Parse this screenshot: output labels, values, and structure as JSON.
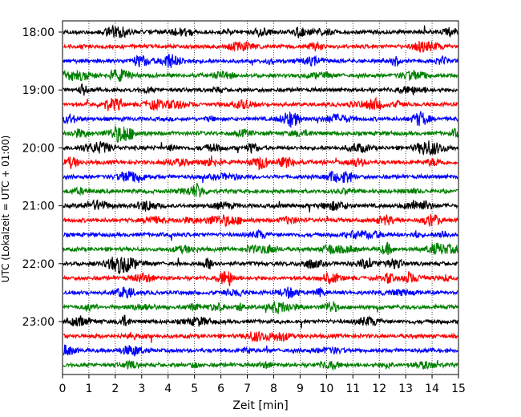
{
  "chart_data": {
    "type": "line",
    "xlabel": "Zeit  [min]",
    "ylabel": "UTC (Lokalzeit = UTC + 01:00)",
    "xlim": [
      0,
      15
    ],
    "x_ticks": [
      0,
      1,
      2,
      3,
      4,
      5,
      6,
      7,
      8,
      9,
      10,
      11,
      12,
      13,
      14,
      15
    ],
    "x_tick_labels": [
      "0",
      "1",
      "2",
      "3",
      "4",
      "5",
      "6",
      "7",
      "8",
      "9",
      "10",
      "11",
      "12",
      "13",
      "14",
      "15"
    ],
    "grid": "vertical dotted at each minute",
    "trace_interval_minutes": 15,
    "trace_start": "18:00",
    "trace_count": 24,
    "trace_colors": [
      "#000000",
      "#ff0000",
      "#0000ff",
      "#008000"
    ],
    "y_ticks": [
      "18:00",
      "19:00",
      "20:00",
      "21:00",
      "22:00",
      "23:00"
    ],
    "series": [
      {
        "start": "18:00",
        "color": "#000000"
      },
      {
        "start": "18:15",
        "color": "#ff0000"
      },
      {
        "start": "18:30",
        "color": "#0000ff"
      },
      {
        "start": "18:45",
        "color": "#008000"
      },
      {
        "start": "19:00",
        "color": "#000000"
      },
      {
        "start": "19:15",
        "color": "#ff0000"
      },
      {
        "start": "19:30",
        "color": "#0000ff"
      },
      {
        "start": "19:45",
        "color": "#008000"
      },
      {
        "start": "20:00",
        "color": "#000000"
      },
      {
        "start": "20:15",
        "color": "#ff0000"
      },
      {
        "start": "20:30",
        "color": "#0000ff"
      },
      {
        "start": "20:45",
        "color": "#008000"
      },
      {
        "start": "21:00",
        "color": "#000000"
      },
      {
        "start": "21:15",
        "color": "#ff0000"
      },
      {
        "start": "21:30",
        "color": "#0000ff"
      },
      {
        "start": "21:45",
        "color": "#008000"
      },
      {
        "start": "22:00",
        "color": "#000000"
      },
      {
        "start": "22:15",
        "color": "#ff0000"
      },
      {
        "start": "22:30",
        "color": "#0000ff"
      },
      {
        "start": "22:45",
        "color": "#008000"
      },
      {
        "start": "23:00",
        "color": "#000000"
      },
      {
        "start": "23:15",
        "color": "#ff0000"
      },
      {
        "start": "23:30",
        "color": "#0000ff"
      },
      {
        "start": "23:45",
        "color": "#008000"
      }
    ]
  }
}
